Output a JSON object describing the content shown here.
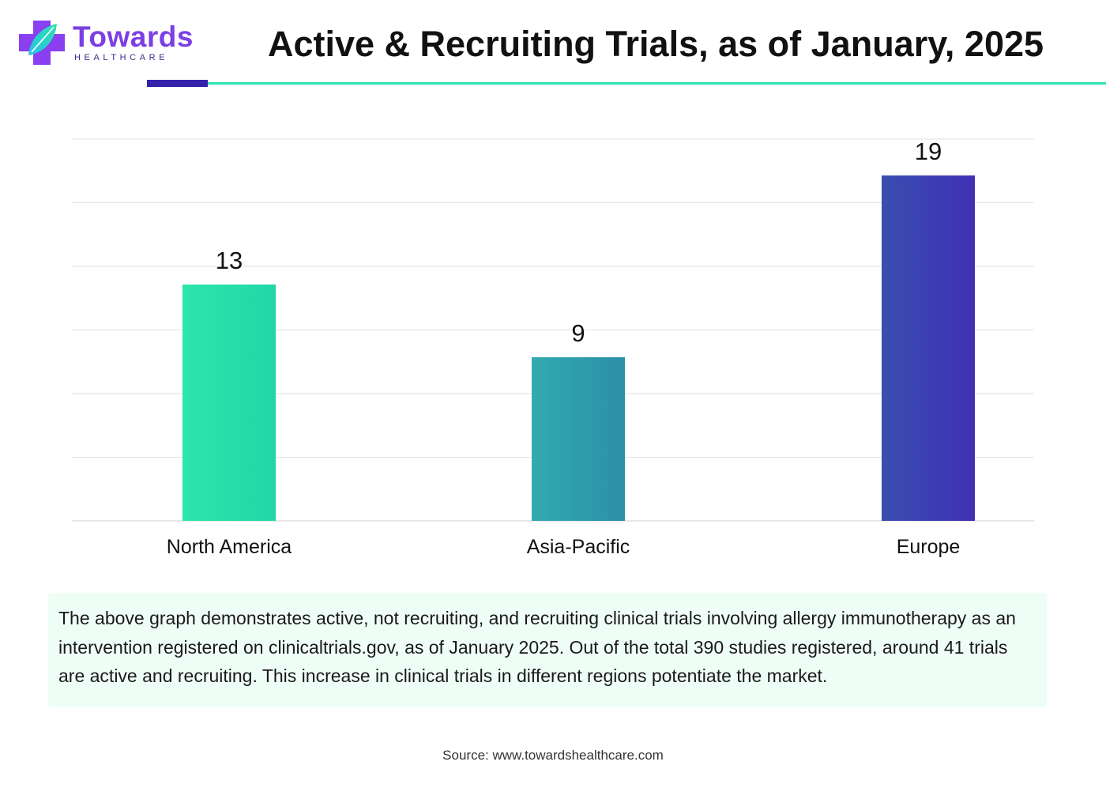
{
  "header": {
    "logo_name": "Towards",
    "logo_subtitle": "HEALTHCARE",
    "title": "Active & Recruiting Trials, as of January, 2025"
  },
  "colors": {
    "brand_purple": "#7b3fe4",
    "accent_green": "#2ee0b0",
    "accent_navy": "#3322aa"
  },
  "chart_data": {
    "type": "bar",
    "categories": [
      "North America",
      "Asia-Pacific",
      "Europe"
    ],
    "values": [
      13,
      9,
      19
    ],
    "ylim": [
      0,
      21
    ],
    "grid": true,
    "data_labels": true,
    "bar_colors": [
      "#27e2a8",
      "#30a2aa",
      "#3d35b3"
    ]
  },
  "caption": {
    "text": "The above graph demonstrates active, not recruiting, and recruiting clinical trials involving allergy immunotherapy as an intervention registered on clinicaltrials.gov, as of January 2025. Out of the total 390 studies registered, around 41 trials are active and recruiting. This increase in clinical trials in different regions potentiate the market."
  },
  "footer": {
    "source": "Source: www.towardshealthcare.com"
  }
}
